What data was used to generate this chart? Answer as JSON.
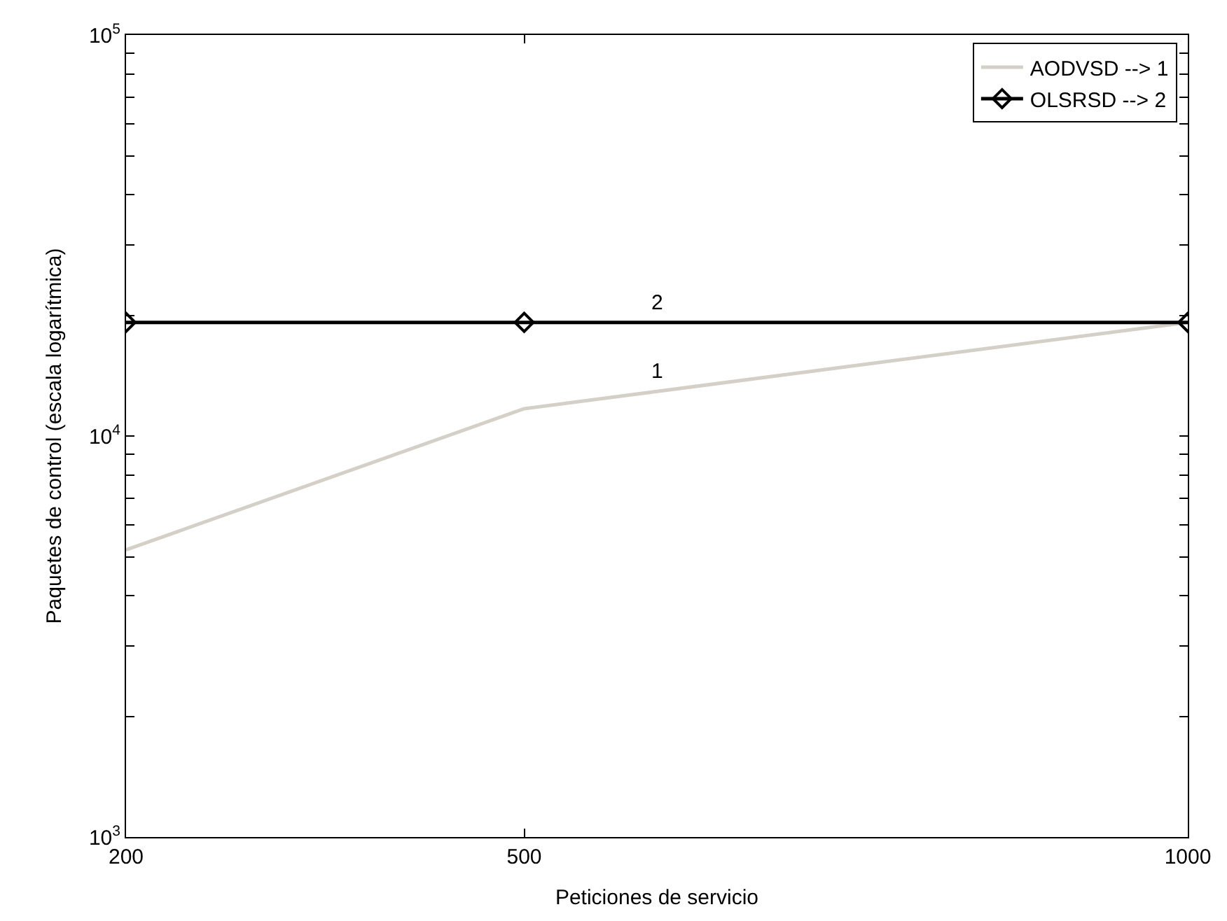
{
  "chart_data": {
    "type": "line",
    "xlabel": "Peticiones de servicio",
    "ylabel": "Paquetes de control (escala logarítmica)",
    "x": [
      200,
      500,
      1000
    ],
    "series": [
      {
        "name": "AODVSD --> 1",
        "color": "#d4d0c8",
        "values": [
          5200,
          11700,
          19200
        ],
        "marker": "none"
      },
      {
        "name": "OLSRSD --> 2",
        "color": "#000000",
        "values": [
          19200,
          19200,
          19200
        ],
        "marker": "diamond"
      }
    ],
    "annotations": [
      "1",
      "2"
    ],
    "log": "y",
    "xlim": [
      200,
      1000
    ],
    "xticks": [
      200,
      500,
      1000
    ],
    "ylim": [
      1000,
      100000
    ],
    "yticks": [
      {
        "value": 1000,
        "label": "10$^{3}$"
      },
      {
        "value": 2000,
        "label": null
      },
      {
        "value": 3000,
        "label": null
      },
      {
        "value": 4000,
        "label": null
      },
      {
        "value": 5000,
        "label": null
      },
      {
        "value": 6000,
        "label": null
      },
      {
        "value": 7000,
        "label": null
      },
      {
        "value": 8000,
        "label": null
      },
      {
        "value": 9000,
        "label": null
      },
      {
        "value": 10000,
        "label": "10$^{4}$"
      },
      {
        "value": 20000,
        "label": null
      },
      {
        "value": 30000,
        "label": null
      },
      {
        "value": 40000,
        "label": null
      },
      {
        "value": 50000,
        "label": null
      },
      {
        "value": 60000,
        "label": null
      },
      {
        "value": 70000,
        "label": null
      },
      {
        "value": 80000,
        "label": null
      },
      {
        "value": 90000,
        "label": null
      },
      {
        "value": 100000,
        "label": "10$^{5}$"
      }
    ],
    "legend": "top right",
    "line_style": "solid"
  }
}
